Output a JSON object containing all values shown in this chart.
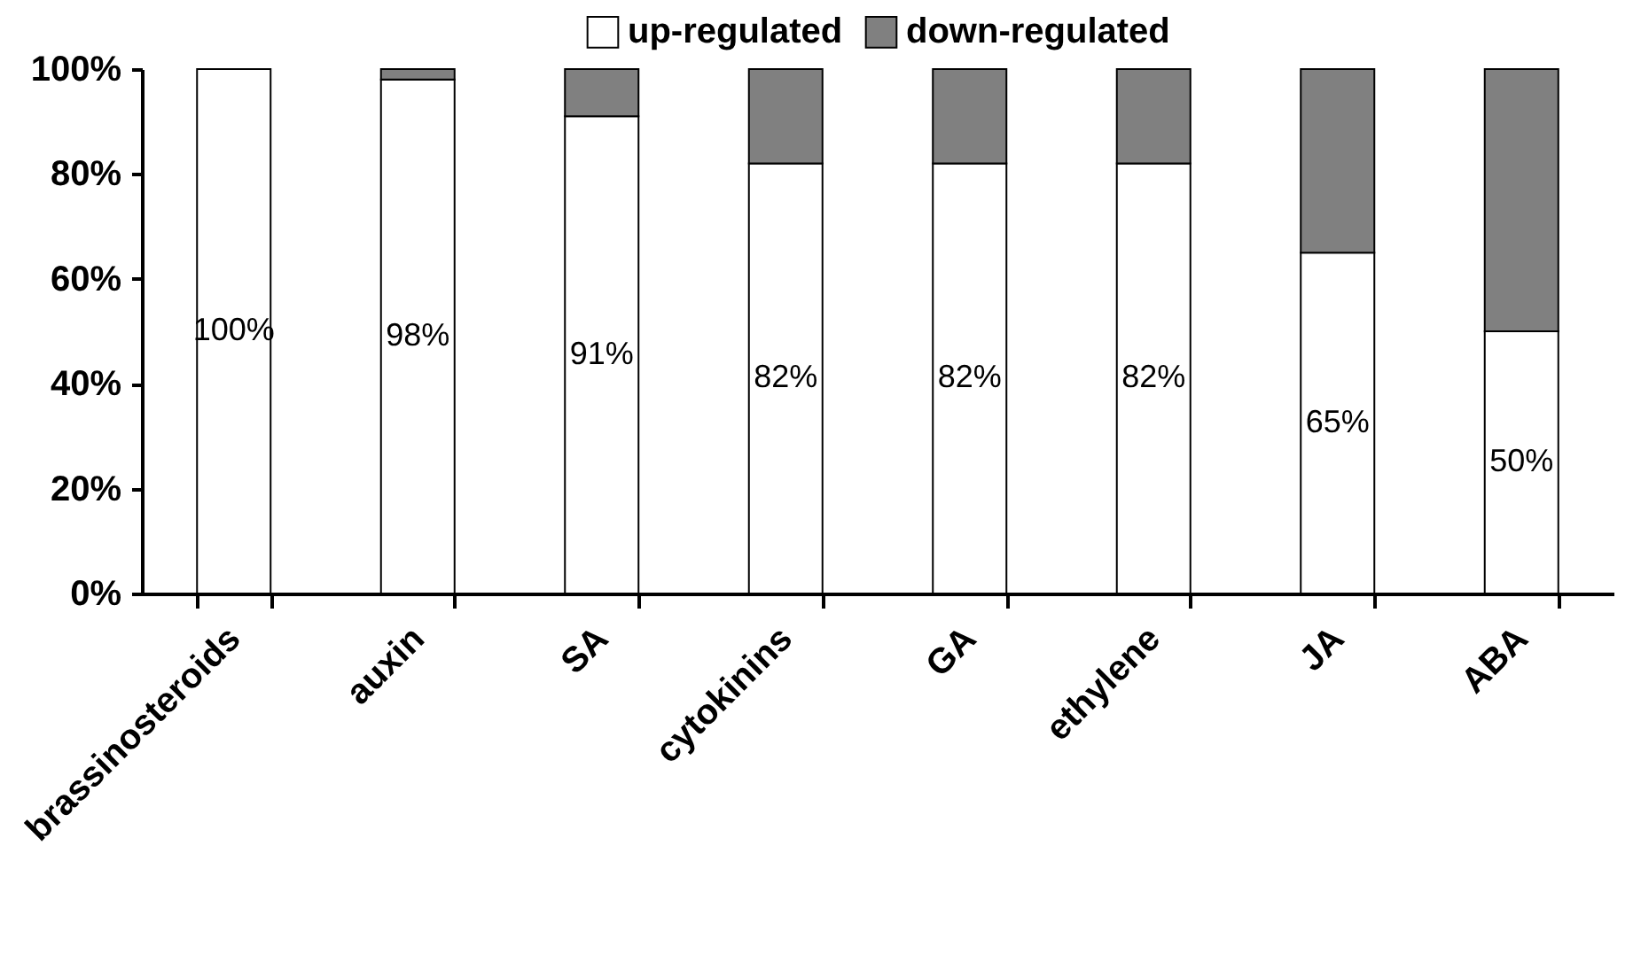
{
  "chart_data": {
    "type": "bar",
    "stacked": true,
    "categories": [
      "brassinosteroids",
      "auxin",
      "SA",
      "cytokinins",
      "GA",
      "ethylene",
      "JA",
      "ABA"
    ],
    "series": [
      {
        "name": "up-regulated",
        "color": "#ffffff",
        "values": [
          100,
          98,
          91,
          82,
          82,
          82,
          65,
          50
        ],
        "value_labels": [
          "100%",
          "98%",
          "91%",
          "82%",
          "82%",
          "82%",
          "65%",
          "50%"
        ]
      },
      {
        "name": "down-regulated",
        "color": "#808080",
        "values": [
          0,
          2,
          9,
          18,
          18,
          18,
          35,
          50
        ]
      }
    ],
    "ylim": [
      0,
      100
    ],
    "yticks": [
      {
        "value": 0,
        "label": "0%"
      },
      {
        "value": 20,
        "label": "20%"
      },
      {
        "value": 40,
        "label": "40%"
      },
      {
        "value": 60,
        "label": "60%"
      },
      {
        "value": 80,
        "label": "80%"
      },
      {
        "value": 100,
        "label": "100%"
      }
    ],
    "grid": false,
    "legend": "top"
  }
}
